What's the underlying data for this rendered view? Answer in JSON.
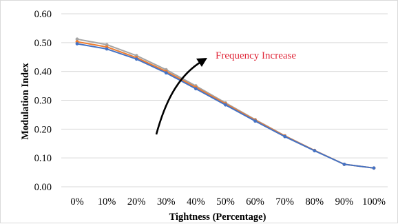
{
  "chart_data": {
    "type": "line",
    "title": "",
    "xlabel": "Tightness (Percentage)",
    "ylabel": "Modulation Index",
    "categories": [
      "0%",
      "10%",
      "20%",
      "30%",
      "40%",
      "50%",
      "60%",
      "70%",
      "80%",
      "90%",
      "100%"
    ],
    "ylim": [
      0,
      0.6
    ],
    "yticks": [
      "0.00",
      "0.10",
      "0.20",
      "0.30",
      "0.40",
      "0.50",
      "0.60"
    ],
    "grid": "horizontal",
    "legend": "none",
    "series": [
      {
        "color": "#4472C4",
        "values": [
          0.496,
          0.478,
          0.443,
          0.395,
          0.34,
          0.284,
          0.228,
          0.174,
          0.125,
          0.078,
          0.065
        ]
      },
      {
        "color": "#ED7D31",
        "values": [
          0.503,
          0.485,
          0.448,
          0.4,
          0.345,
          0.288,
          0.231,
          0.176,
          0.126,
          0.078,
          0.065
        ]
      },
      {
        "color": "#A5A5A5",
        "values": [
          0.512,
          0.493,
          0.455,
          0.406,
          0.35,
          0.291,
          0.233,
          0.177,
          0.126,
          0.078,
          0.065
        ]
      }
    ],
    "annotations": [
      {
        "text": "Frequency Increase",
        "color": "#E0283A"
      }
    ]
  }
}
